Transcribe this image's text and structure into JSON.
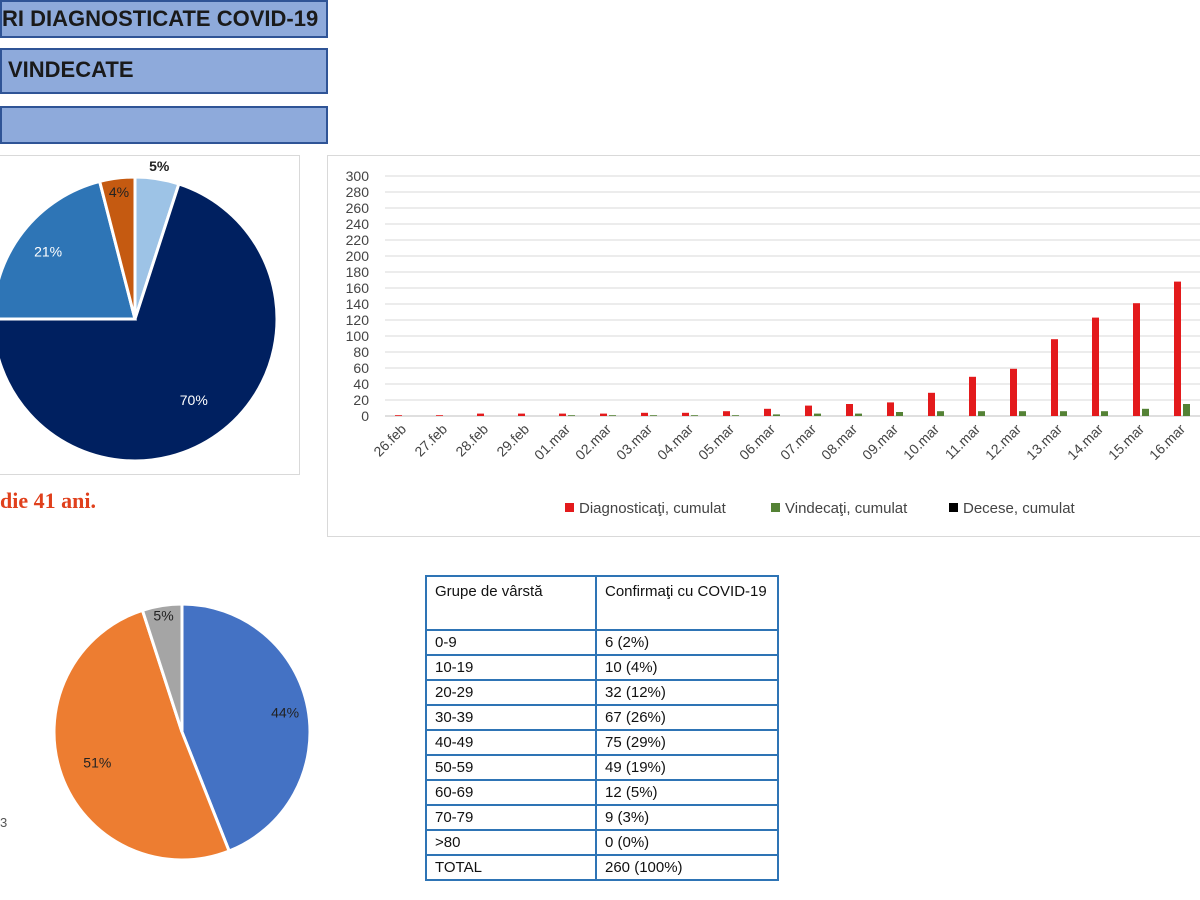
{
  "headers": {
    "h1": "RI DIAGNOSTICATE COVID-19",
    "h2": "VINDECATE",
    "h3": ""
  },
  "age_note": "die 41 ani.",
  "stray_text": "3",
  "colors": {
    "header_fill": "#8eaadb",
    "header_border": "#2f5496",
    "diagnosed": "#e31a1c",
    "recovered": "#548235",
    "deaths": "#000000",
    "table_border": "#2e74b5"
  },
  "chart_data": [
    {
      "type": "pie",
      "labels": [
        "5%",
        "70%",
        "21%",
        "4%"
      ],
      "values": [
        5,
        70,
        21,
        4
      ],
      "colors": [
        "#9dc3e6",
        "#002060",
        "#2e75b6",
        "#c55a11"
      ],
      "bold_label": "5%"
    },
    {
      "type": "bar",
      "categories": [
        "26.feb",
        "27.feb",
        "28.feb",
        "29.feb",
        "01.mar",
        "02.mar",
        "03.mar",
        "04.mar",
        "05.mar",
        "06.mar",
        "07.mar",
        "08.mar",
        "09.mar",
        "10.mar",
        "11.mar",
        "12.mar",
        "13.mar",
        "14.mar",
        "15.mar",
        "16.mar"
      ],
      "series": [
        {
          "name": "Diagnosticaţi, cumulat",
          "color": "#e31a1c",
          "values": [
            1,
            1,
            3,
            3,
            3,
            3,
            4,
            4,
            6,
            9,
            13,
            15,
            17,
            29,
            49,
            59,
            96,
            123,
            141,
            168
          ]
        },
        {
          "name": "Vindecaţi, cumulat",
          "color": "#548235",
          "values": [
            0,
            0,
            0,
            0,
            1,
            1,
            1,
            1,
            1,
            2,
            3,
            3,
            5,
            6,
            6,
            6,
            6,
            6,
            9,
            15
          ]
        },
        {
          "name": "Decese, cumulat",
          "color": "#000000",
          "values": [
            0,
            0,
            0,
            0,
            0,
            0,
            0,
            0,
            0,
            0,
            0,
            0,
            0,
            0,
            0,
            0,
            0,
            0,
            0,
            0
          ]
        }
      ],
      "yticks": [
        0,
        20,
        40,
        60,
        80,
        100,
        120,
        140,
        160,
        180,
        200,
        220,
        240,
        260,
        280,
        300
      ],
      "ylim": [
        0,
        300
      ],
      "grid": true,
      "legend": "bottom"
    },
    {
      "type": "pie",
      "labels": [
        "44%",
        "51%",
        "5%"
      ],
      "values": [
        44,
        51,
        5
      ],
      "colors": [
        "#4472c4",
        "#ed7d31",
        "#a5a5a5"
      ]
    },
    {
      "type": "table",
      "columns": [
        "Grupe de vârstă",
        "Confirmaţi cu COVID-19"
      ],
      "rows": [
        [
          "0-9",
          "6 (2%)"
        ],
        [
          "10-19",
          "10 (4%)"
        ],
        [
          "20-29",
          "32 (12%)"
        ],
        [
          "30-39",
          "67 (26%)"
        ],
        [
          "40-49",
          "75 (29%)"
        ],
        [
          "50-59",
          "49 (19%)"
        ],
        [
          "60-69",
          "12 (5%)"
        ],
        [
          "70-79",
          "9 (3%)"
        ],
        [
          ">80",
          "0 (0%)"
        ],
        [
          "TOTAL",
          "260 (100%)"
        ]
      ]
    }
  ]
}
